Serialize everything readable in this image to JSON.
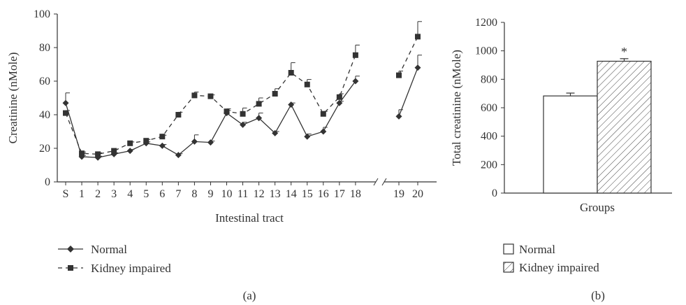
{
  "charts": [
    {
      "id": "a",
      "panel_label": "(a)",
      "chart_data": {
        "type": "line",
        "title": "",
        "xlabel": "Intestinal tract",
        "ylabel": "Creatinine (nMole)",
        "ylim": [
          0,
          100
        ],
        "yticks": [
          0,
          20,
          40,
          60,
          80,
          100
        ],
        "categories": [
          "S",
          "1",
          "2",
          "3",
          "4",
          "5",
          "6",
          "7",
          "8",
          "9",
          "10",
          "11",
          "12",
          "13",
          "14",
          "15",
          "16",
          "17",
          "18",
          "19",
          "20"
        ],
        "break_after": "18",
        "legend_position": "bottom-left",
        "series": [
          {
            "name": "Normal",
            "marker": "diamond",
            "line_style": "solid",
            "values": [
              47,
              15,
              14.5,
              16.5,
              18.5,
              23,
              21.5,
              16,
              24,
              23.5,
              41,
              34,
              38,
              29,
              46,
              27,
              30,
              47,
              60,
              39,
              68
            ],
            "errors": [
              6,
              0.8,
              0.8,
              0.8,
              0.8,
              0.8,
              0.8,
              0.8,
              4,
              0.8,
              1.5,
              1.5,
              3,
              1,
              1,
              1.5,
              2.5,
              1,
              3,
              4,
              7.5
            ]
          },
          {
            "name": "Kidney impaired",
            "marker": "square",
            "line_style": "dashed",
            "values": [
              41,
              17,
              16.5,
              18.5,
              23,
              24.5,
              27,
              40,
              51.5,
              51,
              42,
              40.5,
              46.5,
              52.5,
              65,
              58,
              40.5,
              50.5,
              75.5,
              63.5,
              86.5
            ],
            "errors": [
              1.5,
              0.8,
              0.8,
              0.8,
              0.8,
              0.8,
              0.8,
              1.5,
              2,
              0.8,
              1.5,
              3.5,
              3.5,
              3,
              6,
              3,
              1.5,
              2,
              6,
              2.5,
              9
            ]
          }
        ]
      }
    },
    {
      "id": "b",
      "panel_label": "(b)",
      "chart_data": {
        "type": "bar",
        "title": "",
        "xlabel": "Groups",
        "ylabel": "Total creatinine (nMole)",
        "ylim": [
          0,
          1200
        ],
        "yticks": [
          0,
          200,
          400,
          600,
          800,
          1000,
          1200
        ],
        "categories": [
          "Normal",
          "Kidney impaired"
        ],
        "values": [
          683,
          927
        ],
        "errors": [
          20,
          18
        ],
        "fills": [
          "plain",
          "hatched"
        ],
        "annotation": "*",
        "annotation_on": "Kidney impaired",
        "legend_position": "bottom"
      }
    }
  ]
}
